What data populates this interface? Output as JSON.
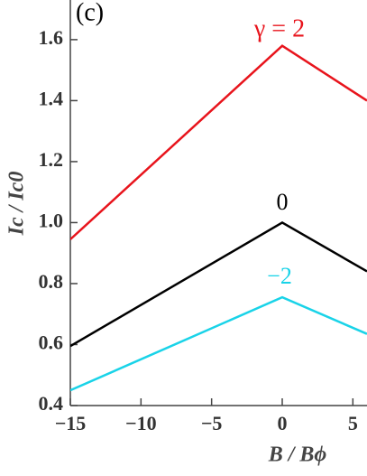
{
  "chart_data": {
    "type": "line",
    "title": "(c)",
    "x_label": "B / Bϕ",
    "y_label": "Ic / Ic0",
    "x": [
      -15,
      0,
      6
    ],
    "series": [
      {
        "name": "γ = 2",
        "color": "#e8141c",
        "values": [
          0.945,
          1.58,
          1.4
        ]
      },
      {
        "name": "0",
        "color": "#000000",
        "values": [
          0.595,
          1.0,
          0.84
        ]
      },
      {
        "name": "−2",
        "color": "#19d3e8",
        "values": [
          0.45,
          0.755,
          0.635
        ]
      }
    ],
    "xlim": [
      -15,
      6
    ],
    "ylim": [
      0.4,
      1.73
    ],
    "xticks": [
      {
        "value": -15,
        "label": "−15"
      },
      {
        "value": -10,
        "label": "−10"
      },
      {
        "value": -5,
        "label": "−5"
      },
      0,
      5
    ],
    "yticks": [
      0.4,
      0.6,
      0.8,
      {
        "value": 1.0,
        "label": "1.0"
      },
      1.2,
      1.4,
      1.6
    ]
  }
}
